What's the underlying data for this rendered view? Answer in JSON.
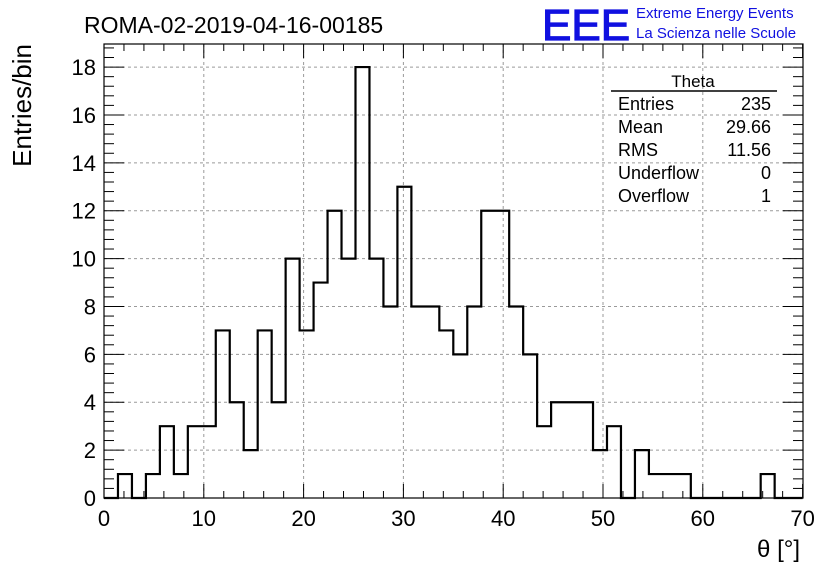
{
  "header": {
    "run_title": "ROMA-02-2019-04-16-00185",
    "logo_text": "EEE",
    "logo_line1": "Extreme Energy Events",
    "logo_line2": "La Scienza nelle Scuole"
  },
  "stats_box": {
    "title": "Theta",
    "rows": [
      {
        "label": "Entries",
        "value": "235"
      },
      {
        "label": "Mean",
        "value": "29.66"
      },
      {
        "label": "RMS",
        "value": "11.56"
      },
      {
        "label": "Underflow",
        "value": "0"
      },
      {
        "label": "Overflow",
        "value": "1"
      }
    ]
  },
  "chart_data": {
    "type": "histogram",
    "title": "ROMA-02-2019-04-16-00185",
    "xlabel": "θ [°]",
    "ylabel": "Entries/bin",
    "xlim": [
      0,
      70
    ],
    "ylim": [
      0,
      19
    ],
    "grid": true,
    "bin_width": 1.4,
    "x_ticks": [
      0,
      10,
      20,
      30,
      40,
      50,
      60,
      70
    ],
    "y_ticks": [
      0,
      2,
      4,
      6,
      8,
      10,
      12,
      14,
      16,
      18
    ],
    "bin_edges_start": 0,
    "values": [
      0,
      1,
      0,
      1,
      3,
      1,
      3,
      3,
      7,
      4,
      2,
      7,
      4,
      10,
      7,
      9,
      12,
      10,
      18,
      10,
      8,
      13,
      8,
      8,
      7,
      6,
      8,
      12,
      12,
      8,
      6,
      3,
      4,
      4,
      4,
      2,
      3,
      0,
      2,
      1,
      1,
      1,
      0,
      0,
      0,
      0,
      0,
      1,
      0,
      0
    ],
    "colors": {
      "line": "#000000",
      "grid": "#9a9a9a",
      "logo": "#1010e0"
    }
  }
}
